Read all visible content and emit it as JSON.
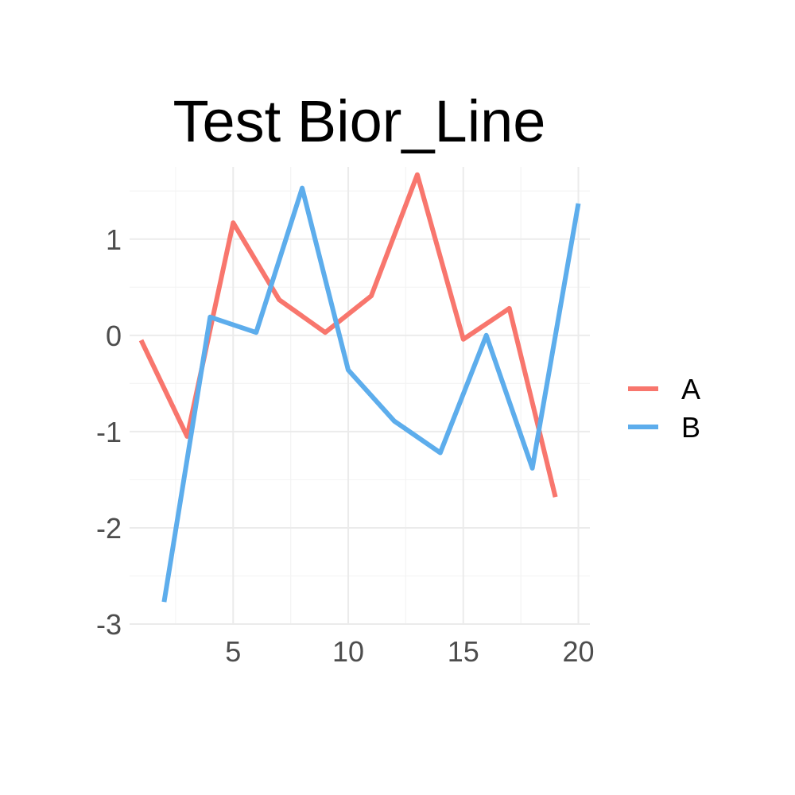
{
  "chart_data": {
    "type": "line",
    "title": "Test Bior_Line",
    "xlabel": "",
    "ylabel": "",
    "xlim": [
      0.5,
      20.5
    ],
    "ylim": [
      -3,
      1.75
    ],
    "x_ticks": [
      5,
      10,
      15,
      20
    ],
    "x_tick_labels": [
      "5",
      "10",
      "15",
      "20"
    ],
    "y_ticks": [
      1,
      0,
      -1,
      -2,
      -3
    ],
    "y_tick_labels": [
      "1",
      "0",
      "-1",
      "-2",
      "-3"
    ],
    "grid": true,
    "legend_position": "right",
    "series": [
      {
        "name": "A",
        "color": "#F8766D",
        "x": [
          1,
          3,
          5,
          7,
          9,
          11,
          13,
          15,
          17,
          19
        ],
        "y": [
          -0.05,
          -1.05,
          1.17,
          0.37,
          0.03,
          0.41,
          1.67,
          -0.04,
          0.28,
          -1.68
        ]
      },
      {
        "name": "B",
        "color": "#5DADEC",
        "x": [
          2,
          4,
          6,
          8,
          10,
          12,
          14,
          16,
          18,
          20
        ],
        "y": [
          -2.77,
          0.19,
          0.03,
          1.53,
          -0.36,
          -0.89,
          -1.22,
          0.0,
          -1.38,
          1.37
        ]
      }
    ]
  }
}
